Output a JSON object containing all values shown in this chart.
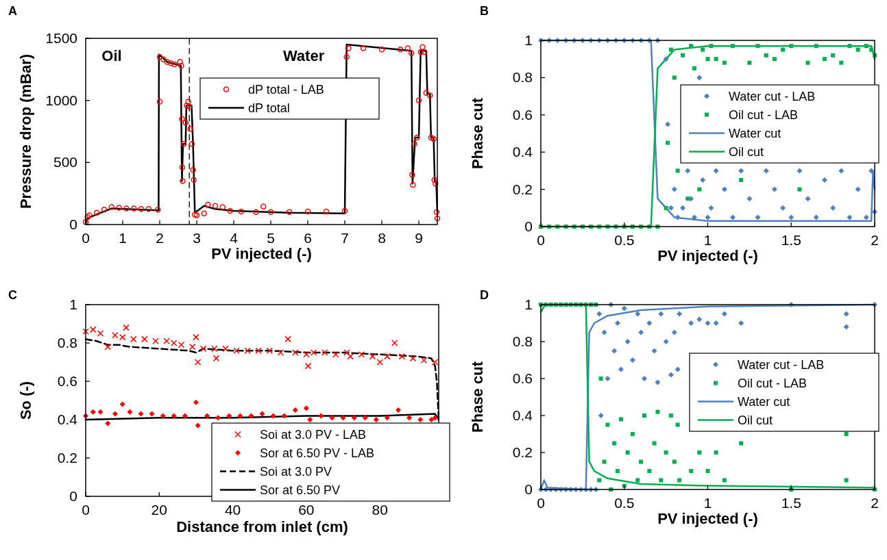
{
  "chart_data": [
    {
      "type": "scatter",
      "title": "A",
      "xlabel": "PV injected (-)",
      "ylabel": "Pressure drop (mBar)",
      "xlim": [
        0,
        9.5
      ],
      "xticks": [
        0,
        1,
        2,
        3,
        4,
        5,
        6,
        7,
        8,
        9
      ],
      "ylim": [
        0,
        1500
      ],
      "yticks": [
        0,
        500,
        1000,
        1500
      ],
      "legend": "top",
      "annotations": [
        "Oil",
        "Water"
      ],
      "ref_lines": [
        {
          "axis": "x",
          "value": 2.8,
          "color": "#000000",
          "line_style": "dashed"
        }
      ],
      "series": [
        {
          "name": "dP total - LAB",
          "marker": "circle",
          "color": "#ff0000",
          "x": [
            0,
            0.05,
            0.1,
            0.3,
            0.5,
            0.7,
            0.9,
            1.1,
            1.3,
            1.5,
            1.7,
            1.95,
            2.0,
            2.0,
            2.1,
            2.2,
            2.3,
            2.4,
            2.55,
            2.58,
            2.6,
            2.61,
            2.62,
            2.65,
            2.7,
            2.73,
            2.77,
            2.8,
            2.83,
            2.87,
            2.9,
            2.92,
            2.95,
            3.0,
            3.2,
            3.3,
            3.5,
            3.7,
            3.9,
            4.2,
            4.6,
            4.8,
            5.0,
            5.5,
            6.0,
            6.5,
            7.0,
            7.05,
            7.1,
            7.5,
            8.0,
            8.5,
            8.7,
            8.8,
            8.82,
            8.84,
            8.88,
            8.95,
            9.0,
            9.05,
            9.1,
            9.15,
            9.2,
            9.3,
            9.33,
            9.4,
            9.42,
            9.45,
            9.48,
            9.5
          ],
          "values": [
            20,
            60,
            75,
            95,
            120,
            140,
            135,
            130,
            130,
            125,
            125,
            120,
            990,
            1350,
            1330,
            1310,
            1300,
            1290,
            1310,
            1280,
            850,
            460,
            350,
            650,
            820,
            960,
            990,
            950,
            770,
            650,
            440,
            360,
            80,
            75,
            90,
            160,
            150,
            140,
            110,
            105,
            100,
            145,
            100,
            100,
            105,
            105,
            110,
            1350,
            1420,
            1420,
            1410,
            1410,
            1420,
            1380,
            400,
            320,
            650,
            700,
            1000,
            1390,
            1430,
            1390,
            1060,
            1040,
            700,
            690,
            360,
            330,
            100,
            50
          ]
        },
        {
          "name": "dP total",
          "type": "line",
          "line_style": "solid",
          "color": "#000000",
          "x": [
            0,
            0.05,
            0.2,
            0.7,
            1.97,
            1.98,
            2.2,
            2.57,
            2.6,
            2.63,
            2.7,
            2.72,
            2.86,
            2.9,
            2.95,
            3.2,
            3.5,
            4.0,
            5.5,
            7.0,
            7.05,
            8.8,
            8.83,
            8.9,
            9.0,
            9.05,
            9.2,
            9.23,
            9.3,
            9.33,
            9.4,
            9.43,
            9.47,
            9.5
          ],
          "values": [
            10,
            50,
            70,
            130,
            115,
            1370,
            1310,
            1280,
            350,
            650,
            650,
            960,
            960,
            650,
            95,
            150,
            125,
            110,
            95,
            90,
            1450,
            1400,
            330,
            700,
            700,
            1400,
            1400,
            1050,
            1050,
            700,
            700,
            350,
            350,
            100
          ]
        }
      ]
    },
    {
      "type": "scatter",
      "title": "B",
      "xlabel": "PV injected (-)",
      "ylabel": "Phase cut",
      "xlim": [
        0,
        2
      ],
      "xticks": [
        0,
        0.5,
        1,
        1.5,
        2
      ],
      "ylim": [
        0,
        1
      ],
      "yticks": [
        0,
        0.2,
        0.4,
        0.6,
        0.8,
        1
      ],
      "legend": "right",
      "series": [
        {
          "name": "Water cut - LAB",
          "marker": "diamond",
          "color": "#4f81bd",
          "x": [
            0,
            0.05,
            0.1,
            0.15,
            0.2,
            0.25,
            0.3,
            0.35,
            0.4,
            0.45,
            0.5,
            0.55,
            0.6,
            0.65,
            0.7,
            0.75,
            0.76,
            0.78,
            0.8,
            0.82,
            0.85,
            0.88,
            0.9,
            0.92,
            0.95,
            0.97,
            1.0,
            1.02,
            1.05,
            1.1,
            1.15,
            1.2,
            1.25,
            1.3,
            1.35,
            1.4,
            1.45,
            1.5,
            1.55,
            1.6,
            1.65,
            1.7,
            1.75,
            1.8,
            1.85,
            1.9,
            1.95,
            1.98,
            2.0
          ],
          "values": [
            1,
            1,
            1,
            1,
            1,
            1,
            1,
            1,
            1,
            1,
            1,
            1,
            1,
            1,
            1,
            0.9,
            0.55,
            0.1,
            0.2,
            0.05,
            0.1,
            0.3,
            0.15,
            0.05,
            0.8,
            0.25,
            0.05,
            0.1,
            0.3,
            0.2,
            0.05,
            0.3,
            0.15,
            0.05,
            0.3,
            0.2,
            0.1,
            0.05,
            0.3,
            0.15,
            0.05,
            0.25,
            0.1,
            0.3,
            0.05,
            0.2,
            0.05,
            0.3,
            0.08
          ]
        },
        {
          "name": "Oil cut - LAB",
          "marker": "square",
          "color": "#00b050",
          "x": [
            0,
            0.05,
            0.1,
            0.15,
            0.2,
            0.25,
            0.3,
            0.35,
            0.4,
            0.45,
            0.5,
            0.55,
            0.6,
            0.65,
            0.7,
            0.75,
            0.76,
            0.78,
            0.8,
            0.82,
            0.85,
            0.88,
            0.9,
            0.92,
            0.95,
            0.97,
            1.0,
            1.02,
            1.05,
            1.1,
            1.15,
            1.2,
            1.25,
            1.3,
            1.35,
            1.4,
            1.45,
            1.5,
            1.55,
            1.6,
            1.65,
            1.7,
            1.75,
            1.8,
            1.85,
            1.9,
            1.95,
            1.98,
            2.0
          ],
          "values": [
            0,
            0,
            0,
            0,
            0,
            0,
            0,
            0,
            0,
            0,
            0,
            0,
            0,
            0,
            0,
            0.1,
            0.45,
            0.95,
            0.8,
            0.3,
            0.92,
            0.15,
            0.97,
            0.85,
            0.2,
            0.95,
            0.9,
            0.97,
            0.9,
            0.88,
            0.97,
            0.25,
            0.88,
            0.97,
            0.92,
            0.9,
            0.95,
            0.97,
            0.2,
            0.88,
            0.97,
            0.9,
            0.92,
            0.88,
            0.97,
            0.95,
            0.97,
            0.95,
            0.92
          ]
        },
        {
          "name": "Water cut",
          "type": "line",
          "line_style": "solid",
          "color": "#4f81bd",
          "x": [
            0,
            0.66,
            0.7,
            0.8,
            1.0,
            1.98,
            1.99,
            2.0
          ],
          "values": [
            1,
            1,
            0.15,
            0.05,
            0.03,
            0.03,
            0.3,
            0.2
          ]
        },
        {
          "name": "Oil cut",
          "type": "line",
          "line_style": "solid",
          "color": "#00b050",
          "x": [
            0,
            0.66,
            0.7,
            0.8,
            1.0,
            1.98,
            2.0
          ],
          "values": [
            0,
            0,
            0.85,
            0.95,
            0.97,
            0.97,
            0.9
          ]
        }
      ]
    },
    {
      "type": "scatter",
      "title": "C",
      "xlabel": "Distance from inlet (cm)",
      "ylabel": "So (-)",
      "xlim": [
        0,
        96
      ],
      "xticks": [
        0,
        20,
        40,
        60,
        80
      ],
      "ylim": [
        0,
        1
      ],
      "yticks": [
        0,
        0.2,
        0.4,
        0.6,
        0.8,
        1
      ],
      "legend": "bottom right",
      "series": [
        {
          "name": "Soi at 3.0 PV - LAB",
          "marker": "cross",
          "color": "#ff0000",
          "x": [
            0,
            2,
            4,
            6,
            8,
            10,
            11,
            13,
            16,
            19,
            22,
            24,
            26,
            29,
            30,
            30.5,
            32,
            35,
            35.5,
            38,
            41,
            44,
            47,
            50,
            53,
            55,
            57,
            60,
            60.5,
            62,
            65,
            68,
            71,
            72,
            75,
            78,
            80,
            82,
            84,
            86,
            89,
            92,
            95
          ],
          "values": [
            0.86,
            0.87,
            0.85,
            0.78,
            0.84,
            0.83,
            0.88,
            0.82,
            0.82,
            0.81,
            0.81,
            0.8,
            0.79,
            0.78,
            0.83,
            0.7,
            0.77,
            0.77,
            0.72,
            0.77,
            0.76,
            0.76,
            0.76,
            0.76,
            0.75,
            0.82,
            0.75,
            0.74,
            0.68,
            0.75,
            0.75,
            0.74,
            0.75,
            0.73,
            0.74,
            0.73,
            0.7,
            0.73,
            0.8,
            0.73,
            0.72,
            0.71,
            0.7
          ]
        },
        {
          "name": "Sor at 6.50 PV - LAB",
          "marker": "diamond",
          "color": "#ff0000",
          "x": [
            0,
            2,
            4,
            6,
            8,
            10,
            12,
            15,
            18,
            21,
            24,
            27,
            30,
            30.5,
            33,
            36,
            39,
            42,
            45,
            48,
            51,
            54,
            57,
            60,
            61,
            64,
            67,
            70,
            73,
            76,
            79,
            82,
            85,
            88,
            91,
            94,
            95
          ],
          "values": [
            0.42,
            0.44,
            0.44,
            0.38,
            0.43,
            0.48,
            0.44,
            0.43,
            0.43,
            0.42,
            0.42,
            0.42,
            0.49,
            0.37,
            0.42,
            0.41,
            0.42,
            0.42,
            0.42,
            0.43,
            0.42,
            0.42,
            0.45,
            0.46,
            0.4,
            0.42,
            0.41,
            0.41,
            0.41,
            0.41,
            0.4,
            0.41,
            0.45,
            0.41,
            0.4,
            0.4,
            0.41
          ]
        },
        {
          "name": "Soi at 3.0 PV",
          "type": "line",
          "line_style": "dashed",
          "color": "#000000",
          "x": [
            0,
            3,
            6,
            9,
            12,
            20,
            28,
            30,
            32,
            40,
            50,
            60,
            70,
            80,
            90,
            94,
            95,
            95.5,
            96
          ],
          "values": [
            0.82,
            0.81,
            0.79,
            0.79,
            0.78,
            0.77,
            0.76,
            0.75,
            0.77,
            0.76,
            0.76,
            0.75,
            0.75,
            0.74,
            0.73,
            0.72,
            0.68,
            0.6,
            0.4
          ]
        },
        {
          "name": "Sor at 6.50 PV",
          "type": "line",
          "line_style": "solid",
          "color": "#000000",
          "x": [
            0,
            20,
            40,
            60,
            80,
            95,
            96
          ],
          "values": [
            0.4,
            0.41,
            0.41,
            0.42,
            0.42,
            0.43,
            0.4
          ]
        }
      ]
    },
    {
      "type": "scatter",
      "title": "D",
      "xlabel": "PV injected (-)",
      "ylabel": "Phase cut",
      "xlim": [
        0,
        2
      ],
      "xticks": [
        0,
        0.5,
        1,
        1.5,
        2
      ],
      "ylim": [
        0,
        1
      ],
      "yticks": [
        0,
        0.2,
        0.4,
        0.6,
        0.8,
        1
      ],
      "legend": "right",
      "series": [
        {
          "name": "Water cut - LAB",
          "marker": "diamond",
          "color": "#4f81bd",
          "x": [
            0,
            0.03,
            0.06,
            0.09,
            0.12,
            0.15,
            0.18,
            0.21,
            0.24,
            0.27,
            0.3,
            0.33,
            0.35,
            0.36,
            0.38,
            0.4,
            0.42,
            0.44,
            0.46,
            0.48,
            0.5,
            0.52,
            0.55,
            0.58,
            0.6,
            0.62,
            0.65,
            0.68,
            0.7,
            0.72,
            0.75,
            0.78,
            0.8,
            0.82,
            0.83,
            0.9,
            0.95,
            1.0,
            1.05,
            1.1,
            1.2,
            1.5,
            1.83,
            1.83,
            2.0
          ],
          "values": [
            0,
            0,
            0,
            0,
            0,
            0,
            0,
            0,
            0,
            0,
            0,
            0,
            0.95,
            0.4,
            0.85,
            0.6,
            1,
            0.75,
            0.9,
            0.65,
            0.98,
            0.8,
            0.7,
            0.95,
            0.85,
            0.6,
            0.9,
            0.75,
            0.58,
            0.95,
            0.8,
            0.62,
            0.85,
            0.65,
            0.95,
            0.9,
            0.92,
            0.9,
            0.9,
            0.95,
            0.9,
            1,
            0.88,
            0.95,
            1
          ]
        },
        {
          "name": "Oil cut - LAB",
          "marker": "square",
          "color": "#00b050",
          "x": [
            0,
            0.03,
            0.06,
            0.09,
            0.12,
            0.15,
            0.18,
            0.21,
            0.24,
            0.27,
            0.3,
            0.33,
            0.35,
            0.36,
            0.38,
            0.4,
            0.42,
            0.44,
            0.46,
            0.48,
            0.5,
            0.52,
            0.55,
            0.58,
            0.6,
            0.62,
            0.65,
            0.68,
            0.7,
            0.72,
            0.75,
            0.78,
            0.8,
            0.82,
            0.83,
            0.9,
            0.95,
            1.0,
            1.05,
            1.1,
            1.2,
            1.5,
            1.83,
            1.83,
            2.0
          ],
          "values": [
            1,
            1,
            1,
            1,
            1,
            1,
            1,
            1,
            1,
            1,
            1,
            1,
            0.05,
            0.6,
            0.15,
            0.35,
            0,
            0.25,
            0.1,
            0.38,
            0.02,
            0.2,
            0.3,
            0.05,
            0.15,
            0.4,
            0.1,
            0.25,
            0.42,
            0.05,
            0.2,
            0.4,
            0.15,
            0.35,
            0.05,
            0.1,
            0.2,
            0.1,
            0.2,
            0.05,
            0.25,
            0,
            0.3,
            0.05,
            0
          ]
        },
        {
          "name": "Water cut",
          "type": "line",
          "line_style": "solid",
          "color": "#4f81bd",
          "x": [
            0,
            0.02,
            0.04,
            0.27,
            0.29,
            0.32,
            0.4,
            0.6,
            1.0,
            2.0
          ],
          "values": [
            0,
            0.05,
            0.01,
            0,
            0.85,
            0.9,
            0.94,
            0.97,
            0.99,
            1
          ]
        },
        {
          "name": "Oil cut",
          "type": "line",
          "line_style": "solid",
          "color": "#00b050",
          "x": [
            0,
            0.02,
            0.04,
            0.27,
            0.29,
            0.32,
            0.4,
            0.6,
            1.0,
            2.0
          ],
          "values": [
            0.96,
            0.99,
            1,
            1,
            0.15,
            0.1,
            0.06,
            0.03,
            0.02,
            0.01
          ]
        }
      ]
    }
  ]
}
